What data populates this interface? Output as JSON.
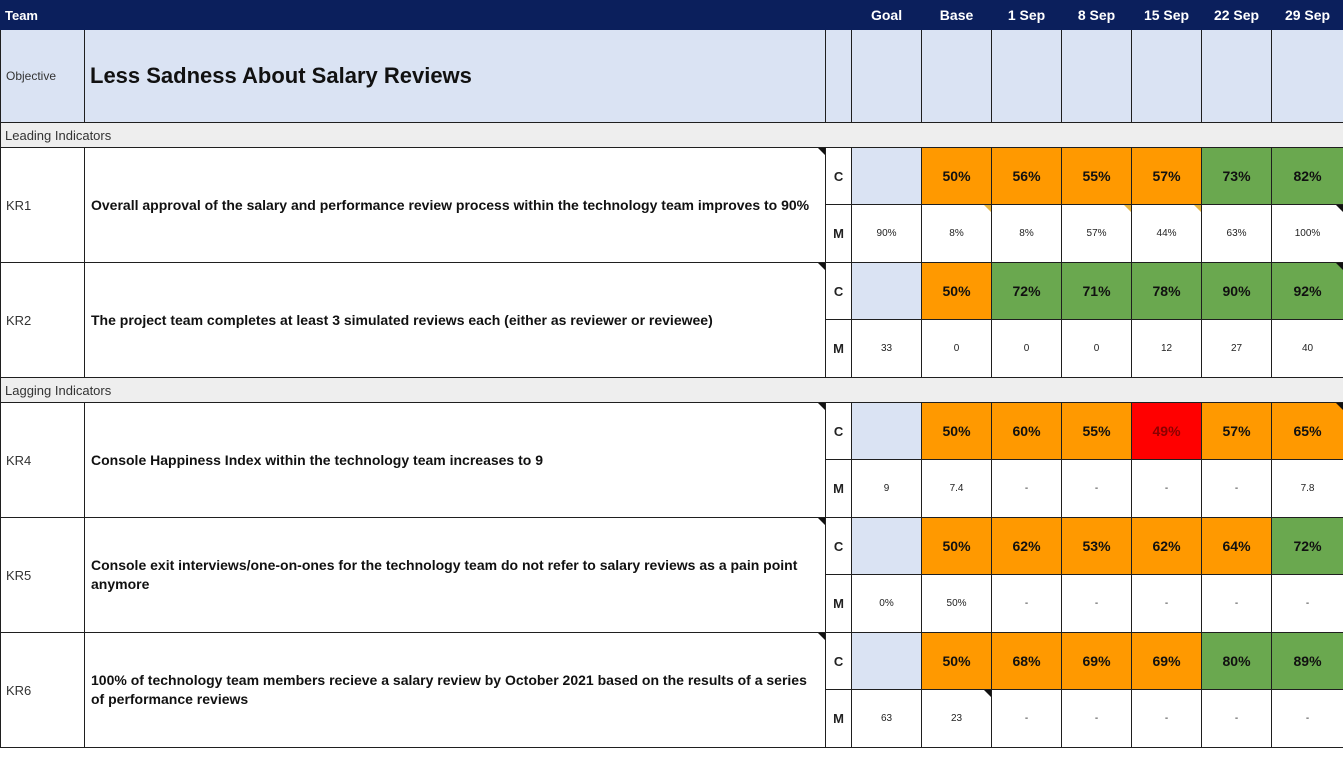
{
  "header": {
    "team": "Team",
    "columns": [
      "Goal",
      "Base",
      "1 Sep",
      "8 Sep",
      "15 Sep",
      "22 Sep",
      "29 Sep"
    ]
  },
  "objective": {
    "label": "Objective",
    "title": "Less Sadness About Salary Reviews"
  },
  "row_labels": {
    "c": "C",
    "m": "M"
  },
  "sections": [
    {
      "title": "Leading Indicators",
      "krs": [
        {
          "id": "KR1",
          "text": "Overall approval of the salary and performance review process within the technology team improves to 90%",
          "c": [
            "",
            "50%",
            "56%",
            "55%",
            "57%",
            "73%",
            "82%"
          ],
          "c_colors": [
            "blue",
            "orange",
            "orange",
            "orange",
            "orange",
            "green",
            "green"
          ],
          "m": [
            "90%",
            "8%",
            "8%",
            "57%",
            "44%",
            "63%",
            "100%"
          ]
        },
        {
          "id": "KR2",
          "text": "The project team completes at least 3 simulated reviews each (either as reviewer or reviewee)",
          "c": [
            "",
            "50%",
            "72%",
            "71%",
            "78%",
            "90%",
            "92%"
          ],
          "c_colors": [
            "blue",
            "orange",
            "green",
            "green",
            "green",
            "green",
            "green"
          ],
          "m": [
            "33",
            "0",
            "0",
            "0",
            "12",
            "27",
            "40"
          ]
        }
      ]
    },
    {
      "title": "Lagging Indicators",
      "krs": [
        {
          "id": "KR4",
          "text": "Console Happiness Index within the technology team increases to 9",
          "c": [
            "",
            "50%",
            "60%",
            "55%",
            "49%",
            "57%",
            "65%"
          ],
          "c_colors": [
            "blue",
            "orange",
            "orange",
            "orange",
            "red",
            "orange",
            "orange"
          ],
          "m": [
            "9",
            "7.4",
            "-",
            "-",
            "-",
            "-",
            "7.8"
          ]
        },
        {
          "id": "KR5",
          "text": "Console exit interviews/one-on-ones for the technology team do not refer to salary reviews as a pain point anymore",
          "c": [
            "",
            "50%",
            "62%",
            "53%",
            "62%",
            "64%",
            "72%"
          ],
          "c_colors": [
            "blue",
            "orange",
            "orange",
            "orange",
            "orange",
            "orange",
            "green"
          ],
          "m": [
            "0%",
            "50%",
            "-",
            "-",
            "-",
            "-",
            "-"
          ]
        },
        {
          "id": "KR6",
          "text": "100% of technology team members recieve a salary review by October 2021 based on the results of a series of performance reviews",
          "c": [
            "",
            "50%",
            "68%",
            "69%",
            "69%",
            "80%",
            "89%"
          ],
          "c_colors": [
            "blue",
            "orange",
            "orange",
            "orange",
            "orange",
            "green",
            "green"
          ],
          "m": [
            "63",
            "23",
            "-",
            "-",
            "-",
            "-",
            "-"
          ]
        }
      ]
    }
  ],
  "colors": {
    "header": "#0b1f5c",
    "objective_bg": "#dae3f3",
    "orange": "#ff9900",
    "green": "#6aa84f",
    "red": "#ff0000",
    "section_bg": "#eeeeee"
  }
}
